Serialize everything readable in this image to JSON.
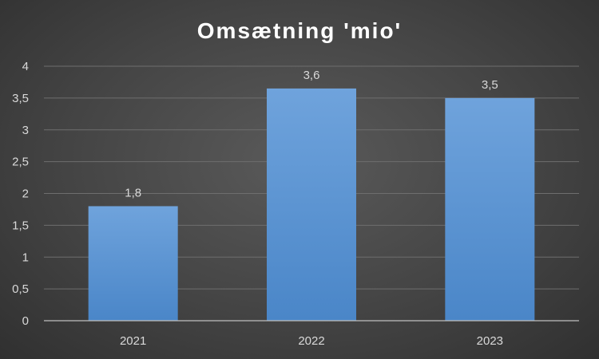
{
  "chart_data": {
    "type": "bar",
    "title": "Omsætning 'mio'",
    "categories": [
      "2021",
      "2022",
      "2023"
    ],
    "values": [
      1.8,
      3.65,
      3.5
    ],
    "data_labels": [
      "1,8",
      "3,6",
      "3,5"
    ],
    "y_ticks": [
      "0",
      "0,5",
      "1",
      "1,5",
      "2",
      "2,5",
      "3",
      "3,5",
      "4"
    ],
    "ylim": [
      0,
      4
    ],
    "grid": true,
    "legend": "none",
    "bar_color_top": "#6fa3dc",
    "bar_color_bottom": "#4a86c8",
    "background_color": "#404040"
  }
}
